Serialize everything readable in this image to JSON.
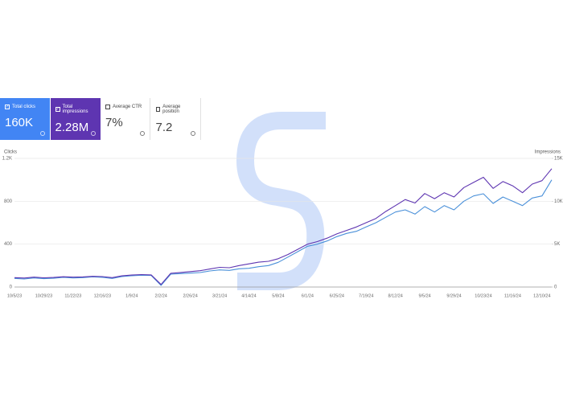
{
  "cards": [
    {
      "label": "Total clicks",
      "value": "160K",
      "checked": true,
      "color": "#4285f4"
    },
    {
      "label": "Total impressions",
      "value": "2.28M",
      "checked": true,
      "color": "#5e35b1"
    },
    {
      "label": "Average CTR",
      "value": "7%",
      "checked": false,
      "color": "#ffffff"
    },
    {
      "label": "Average position",
      "value": "7.2",
      "checked": false,
      "color": "#ffffff"
    }
  ],
  "chart_data": {
    "type": "line",
    "categories": [
      "10/5/23",
      null,
      null,
      "10/29/23",
      null,
      null,
      "11/22/23",
      null,
      null,
      "12/16/23",
      null,
      null,
      "1/9/24",
      null,
      null,
      "2/2/24",
      null,
      null,
      "2/26/24",
      null,
      null,
      "3/21/24",
      null,
      null,
      "4/14/24",
      null,
      null,
      "5/8/24",
      null,
      null,
      "6/1/24",
      null,
      null,
      "6/25/24",
      null,
      null,
      "7/19/24",
      null,
      null,
      "8/12/24",
      null,
      null,
      "9/5/24",
      null,
      null,
      "9/29/24",
      null,
      null,
      "10/23/24",
      null,
      null,
      "11/16/24",
      null,
      null,
      "12/10/24",
      null
    ],
    "series": [
      {
        "name": "Clicks",
        "color": "#4a90d9",
        "values": [
          80,
          75,
          85,
          78,
          82,
          90,
          85,
          88,
          95,
          90,
          80,
          98,
          105,
          110,
          108,
          15,
          120,
          125,
          130,
          135,
          150,
          160,
          155,
          170,
          175,
          190,
          200,
          230,
          280,
          330,
          380,
          400,
          430,
          470,
          500,
          520,
          560,
          600,
          650,
          700,
          720,
          680,
          750,
          700,
          760,
          720,
          800,
          850,
          870,
          780,
          840,
          800,
          760,
          830,
          850,
          1000
        ]
      },
      {
        "name": "Impressions",
        "color": "#5e35b1",
        "axis": "y2",
        "values": [
          1100,
          1050,
          1150,
          1080,
          1120,
          1200,
          1150,
          1180,
          1250,
          1220,
          1100,
          1300,
          1400,
          1450,
          1420,
          300,
          1600,
          1700,
          1800,
          1900,
          2100,
          2300,
          2250,
          2500,
          2700,
          2900,
          3000,
          3300,
          3800,
          4400,
          5000,
          5300,
          5700,
          6200,
          6600,
          7000,
          7500,
          8000,
          8800,
          9500,
          10200,
          9800,
          10900,
          10300,
          11000,
          10500,
          11600,
          12200,
          12800,
          11500,
          12300,
          11800,
          11000,
          12000,
          12400,
          13800
        ]
      }
    ],
    "ylim": [
      0,
      1200
    ],
    "yticks": [
      0,
      400,
      800,
      {
        "value": 1200,
        "label": "1.2K"
      }
    ],
    "y2lim": [
      0,
      15000
    ],
    "y2ticks": [
      0,
      {
        "value": 5000,
        "label": "5K"
      },
      {
        "value": 10000,
        "label": "10K"
      },
      {
        "value": 15000,
        "label": "15K"
      }
    ],
    "grid": true
  }
}
